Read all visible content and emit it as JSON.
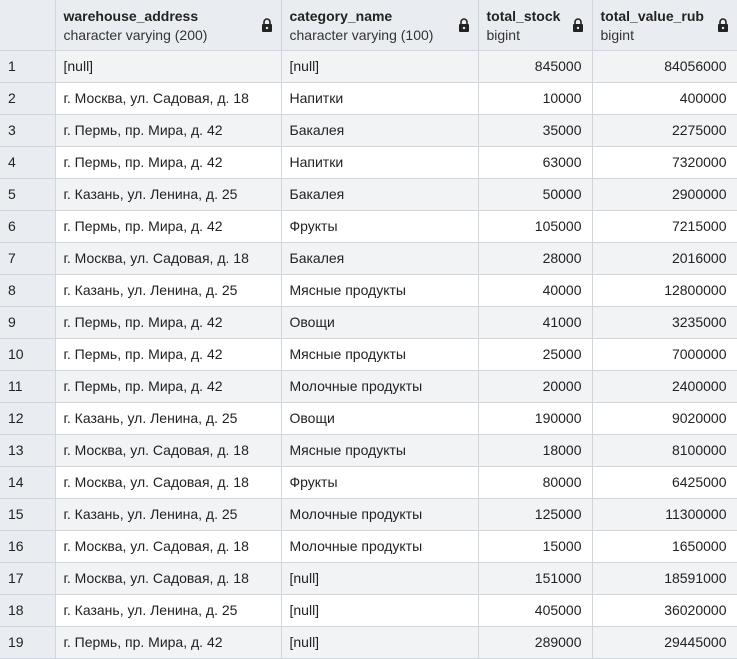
{
  "columns": [
    {
      "name": "warehouse_address",
      "type": "character varying (200)"
    },
    {
      "name": "category_name",
      "type": "character varying (100)"
    },
    {
      "name": "total_stock",
      "type": "bigint"
    },
    {
      "name": "total_value_rub",
      "type": "bigint"
    }
  ],
  "rows": [
    {
      "n": "1",
      "addr": "[null]",
      "cat": "[null]",
      "stock": "845000",
      "value": "84056000"
    },
    {
      "n": "2",
      "addr": "г. Москва, ул. Садовая, д. 18",
      "cat": "Напитки",
      "stock": "10000",
      "value": "400000"
    },
    {
      "n": "3",
      "addr": "г. Пермь, пр. Мира, д. 42",
      "cat": "Бакалея",
      "stock": "35000",
      "value": "2275000"
    },
    {
      "n": "4",
      "addr": "г. Пермь, пр. Мира, д. 42",
      "cat": "Напитки",
      "stock": "63000",
      "value": "7320000"
    },
    {
      "n": "5",
      "addr": "г. Казань, ул. Ленина, д. 25",
      "cat": "Бакалея",
      "stock": "50000",
      "value": "2900000"
    },
    {
      "n": "6",
      "addr": "г. Пермь, пр. Мира, д. 42",
      "cat": "Фрукты",
      "stock": "105000",
      "value": "7215000"
    },
    {
      "n": "7",
      "addr": "г. Москва, ул. Садовая, д. 18",
      "cat": "Бакалея",
      "stock": "28000",
      "value": "2016000"
    },
    {
      "n": "8",
      "addr": "г. Казань, ул. Ленина, д. 25",
      "cat": "Мясные продукты",
      "stock": "40000",
      "value": "12800000"
    },
    {
      "n": "9",
      "addr": "г. Пермь, пр. Мира, д. 42",
      "cat": "Овощи",
      "stock": "41000",
      "value": "3235000"
    },
    {
      "n": "10",
      "addr": "г. Пермь, пр. Мира, д. 42",
      "cat": "Мясные продукты",
      "stock": "25000",
      "value": "7000000"
    },
    {
      "n": "11",
      "addr": "г. Пермь, пр. Мира, д. 42",
      "cat": "Молочные продукты",
      "stock": "20000",
      "value": "2400000"
    },
    {
      "n": "12",
      "addr": "г. Казань, ул. Ленина, д. 25",
      "cat": "Овощи",
      "stock": "190000",
      "value": "9020000"
    },
    {
      "n": "13",
      "addr": "г. Москва, ул. Садовая, д. 18",
      "cat": "Мясные продукты",
      "stock": "18000",
      "value": "8100000"
    },
    {
      "n": "14",
      "addr": "г. Москва, ул. Садовая, д. 18",
      "cat": "Фрукты",
      "stock": "80000",
      "value": "6425000"
    },
    {
      "n": "15",
      "addr": "г. Казань, ул. Ленина, д. 25",
      "cat": "Молочные продукты",
      "stock": "125000",
      "value": "11300000"
    },
    {
      "n": "16",
      "addr": "г. Москва, ул. Садовая, д. 18",
      "cat": "Молочные продукты",
      "stock": "15000",
      "value": "1650000"
    },
    {
      "n": "17",
      "addr": "г. Москва, ул. Садовая, д. 18",
      "cat": "[null]",
      "stock": "151000",
      "value": "18591000"
    },
    {
      "n": "18",
      "addr": "г. Казань, ул. Ленина, д. 25",
      "cat": "[null]",
      "stock": "405000",
      "value": "36020000"
    },
    {
      "n": "19",
      "addr": "г. Пермь, пр. Мира, д. 42",
      "cat": "[null]",
      "stock": "289000",
      "value": "29445000"
    }
  ],
  "icons": {
    "header_lock": "lock-icon"
  },
  "colors": {
    "header_bg": "#e9edf1",
    "row_alt_bg": "#f1f3f5",
    "grid_line": "#cfd6dd"
  }
}
